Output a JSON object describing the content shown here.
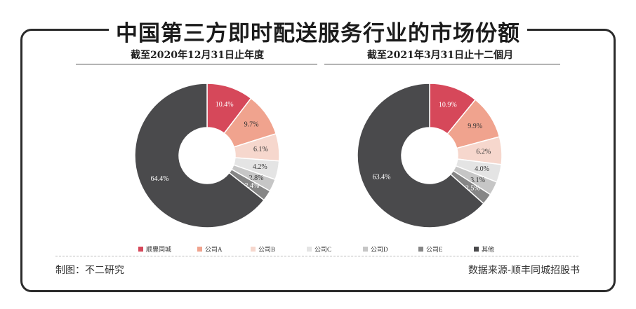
{
  "title": "中国第三方即时配送服务行业的市场份额",
  "legend_items": [
    {
      "label": "顺豐同城",
      "color": "#d6485a"
    },
    {
      "label": "公司A",
      "color": "#f0a38e"
    },
    {
      "label": "公司B",
      "color": "#f6d7cd"
    },
    {
      "label": "公司C",
      "color": "#e4e4e4"
    },
    {
      "label": "公司D",
      "color": "#c6c6c6"
    },
    {
      "label": "公司E",
      "color": "#868686"
    },
    {
      "label": "其他",
      "color": "#4a4a4c"
    }
  ],
  "chart_data": [
    {
      "type": "pie",
      "title": "截至2020年12月31日止年度",
      "labels": [
        "顺豐同城",
        "公司A",
        "公司B",
        "公司C",
        "公司D",
        "公司E",
        "其他"
      ],
      "values": [
        10.4,
        9.7,
        6.1,
        4.2,
        2.8,
        2.4,
        64.4
      ],
      "value_labels": [
        "10.4%",
        "9.7%",
        "6.1%",
        "4.2%",
        "2.8%",
        "2.4%",
        "64.4%"
      ],
      "colors": [
        "#d6485a",
        "#f0a38e",
        "#f6d7cd",
        "#e4e4e4",
        "#c6c6c6",
        "#868686",
        "#4a4a4c"
      ],
      "donut": true,
      "start": "12 o'clock, clockwise"
    },
    {
      "type": "pie",
      "title": "截至2021年3月31日止十二個月",
      "labels": [
        "顺豐同城",
        "公司A",
        "公司B",
        "公司C",
        "公司D",
        "公司E",
        "其他"
      ],
      "values": [
        10.9,
        9.9,
        6.2,
        4.0,
        3.1,
        2.5,
        63.4
      ],
      "value_labels": [
        "10.9%",
        "9.9%",
        "6.2%",
        "4.0%",
        "3.1%",
        "2.5%",
        "63.4%"
      ],
      "colors": [
        "#d6485a",
        "#f0a38e",
        "#f6d7cd",
        "#e4e4e4",
        "#c6c6c6",
        "#868686",
        "#4a4a4c"
      ],
      "donut": true,
      "start": "12 o'clock, clockwise"
    }
  ],
  "footer": {
    "credit": "制图：不二研究",
    "source": "数据来源-顺丰同城招股书"
  }
}
